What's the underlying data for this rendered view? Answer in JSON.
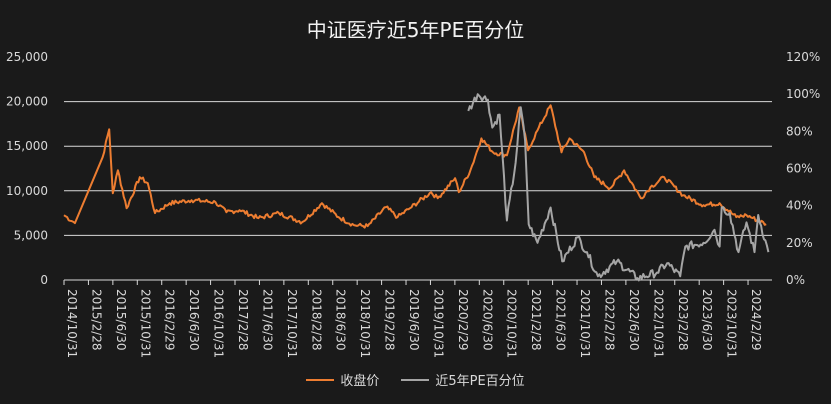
{
  "chart_data": {
    "type": "line",
    "title": "中证医疗近5年PE百分位",
    "x_unit": "decimal year",
    "xlim": [
      2014.83,
      2024.55
    ],
    "x_tick_labels": [
      "2014/10/31",
      "2015/2/28",
      "2015/6/30",
      "2015/10/31",
      "2016/2/29",
      "2016/6/30",
      "2016/10/31",
      "2017/2/28",
      "2017/6/30",
      "2017/10/31",
      "2018/2/28",
      "2018/6/30",
      "2018/10/31",
      "2019/2/28",
      "2019/6/30",
      "2019/10/31",
      "2020/2/29",
      "2020/6/30",
      "2020/10/31",
      "2021/2/28",
      "2021/6/30",
      "2021/10/31",
      "2022/2/28",
      "2022/6/30",
      "2022/10/31",
      "2023/2/28",
      "2023/6/30",
      "2023/10/31",
      "2024/2/29"
    ],
    "y_left": {
      "ylim": [
        0,
        25000
      ],
      "tick_labels": [
        "0",
        "5,000",
        "10,000",
        "15,000",
        "20,000",
        "25,000"
      ],
      "tick_values": [
        0,
        5000,
        10000,
        15000,
        20000,
        25000
      ]
    },
    "y_right": {
      "ylim": [
        0,
        120
      ],
      "tick_labels": [
        "0%",
        "20%",
        "40%",
        "60%",
        "80%",
        "100%",
        "120%"
      ],
      "tick_values": [
        0,
        20,
        40,
        60,
        80,
        100,
        120
      ]
    },
    "grid": true,
    "legend_position": "bottom",
    "series": [
      {
        "name": "收盘价",
        "axis": "left",
        "color": "#ed7d31",
        "points": [
          [
            2014.83,
            7270
          ],
          [
            2014.98,
            6380
          ],
          [
            2015.36,
            13760
          ],
          [
            2015.45,
            16900
          ],
          [
            2015.5,
            9730
          ],
          [
            2015.57,
            12300
          ],
          [
            2015.69,
            8050
          ],
          [
            2015.87,
            11520
          ],
          [
            2015.98,
            10850
          ],
          [
            2016.08,
            7500
          ],
          [
            2016.28,
            8610
          ],
          [
            2016.58,
            8950
          ],
          [
            2016.91,
            8720
          ],
          [
            2017.06,
            7600
          ],
          [
            2017.24,
            7830
          ],
          [
            2017.5,
            6935
          ],
          [
            2017.78,
            7500
          ],
          [
            2018.1,
            6490
          ],
          [
            2018.37,
            8610
          ],
          [
            2018.6,
            7050
          ],
          [
            2018.81,
            6150
          ],
          [
            2019.0,
            6040
          ],
          [
            2019.25,
            8170
          ],
          [
            2019.41,
            7050
          ],
          [
            2019.58,
            8050
          ],
          [
            2019.87,
            9840
          ],
          [
            2019.96,
            9170
          ],
          [
            2020.2,
            11410
          ],
          [
            2020.25,
            9840
          ],
          [
            2020.41,
            12300
          ],
          [
            2020.56,
            15880
          ],
          [
            2020.72,
            14320
          ],
          [
            2020.91,
            13980
          ],
          [
            2021.08,
            19350
          ],
          [
            2021.2,
            14540
          ],
          [
            2021.33,
            16780
          ],
          [
            2021.51,
            19580
          ],
          [
            2021.66,
            14320
          ],
          [
            2021.77,
            15880
          ],
          [
            2021.97,
            14320
          ],
          [
            2022.11,
            11520
          ],
          [
            2022.33,
            10290
          ],
          [
            2022.52,
            12300
          ],
          [
            2022.75,
            9170
          ],
          [
            2022.88,
            10400
          ],
          [
            2023.07,
            11520
          ],
          [
            2023.33,
            9500
          ],
          [
            2023.61,
            8390
          ],
          [
            2023.83,
            8610
          ],
          [
            2024.06,
            7050
          ],
          [
            2024.2,
            7270
          ],
          [
            2024.47,
            6260
          ]
        ]
      },
      {
        "name": "近5年PE百分位",
        "axis": "right",
        "color": "#a5a5a5",
        "points": [
          [
            2020.38,
            91
          ],
          [
            2020.51,
            100
          ],
          [
            2020.65,
            97
          ],
          [
            2020.71,
            82
          ],
          [
            2020.81,
            89
          ],
          [
            2020.91,
            32
          ],
          [
            2021.03,
            63
          ],
          [
            2021.1,
            93
          ],
          [
            2021.16,
            75
          ],
          [
            2021.21,
            30
          ],
          [
            2021.33,
            20
          ],
          [
            2021.51,
            39
          ],
          [
            2021.67,
            10
          ],
          [
            2021.88,
            23
          ],
          [
            2022.01,
            15
          ],
          [
            2022.16,
            2
          ],
          [
            2022.42,
            10
          ],
          [
            2022.7,
            1
          ],
          [
            2022.97,
            4
          ],
          [
            2023.11,
            9
          ],
          [
            2023.29,
            2
          ],
          [
            2023.36,
            18
          ],
          [
            2023.61,
            20
          ],
          [
            2023.76,
            27
          ],
          [
            2023.83,
            18
          ],
          [
            2023.86,
            39
          ],
          [
            2023.97,
            36
          ],
          [
            2024.09,
            15
          ],
          [
            2024.2,
            31
          ],
          [
            2024.31,
            15
          ],
          [
            2024.36,
            35
          ],
          [
            2024.5,
            15
          ]
        ]
      }
    ]
  }
}
